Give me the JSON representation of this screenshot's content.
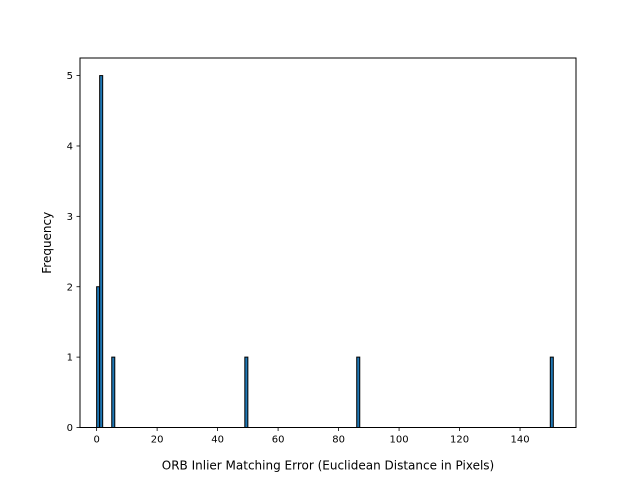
{
  "chart_data": {
    "type": "bar",
    "subtype": "histogram",
    "xlabel": "ORB Inlier Matching Error (Euclidean Distance in Pixels)",
    "ylabel": "Frequency",
    "xlim": [
      -5.5,
      158.5
    ],
    "ylim": [
      0,
      5.25
    ],
    "xticks": [
      0,
      20,
      40,
      60,
      80,
      100,
      120,
      140
    ],
    "yticks": [
      0,
      1,
      2,
      3,
      4,
      5
    ],
    "grid": false,
    "bars": [
      {
        "x_start": 0.0,
        "x_end": 1.0,
        "value": 2
      },
      {
        "x_start": 1.0,
        "x_end": 2.0,
        "value": 5
      },
      {
        "x_start": 5.0,
        "x_end": 6.0,
        "value": 1
      },
      {
        "x_start": 49.0,
        "x_end": 50.0,
        "value": 1
      },
      {
        "x_start": 86.0,
        "x_end": 87.0,
        "value": 1
      },
      {
        "x_start": 150.0,
        "x_end": 151.0,
        "value": 1
      }
    ],
    "colors": {
      "bar_fill": "#1f77b4",
      "bar_edge": "#000000",
      "axes": "#000000",
      "background": "#ffffff"
    }
  }
}
